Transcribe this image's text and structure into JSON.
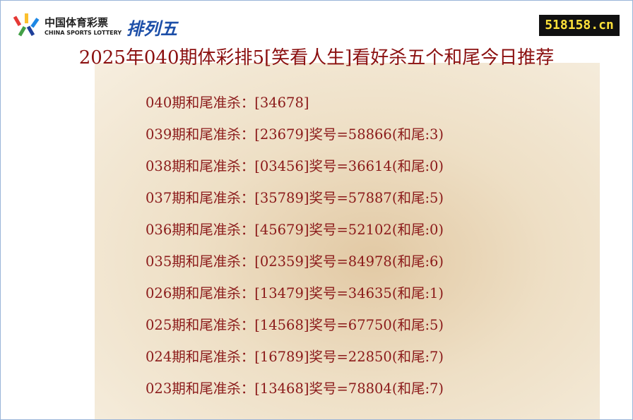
{
  "header": {
    "logo_cn": "中国体育彩票",
    "logo_en": "CHINA SPORTS LOTTERY",
    "game": "排列五",
    "site": "518158.cn"
  },
  "title": "2025年040期体彩排5[笑看人生]看好杀五个和尾今日推荐",
  "rows": [
    "040期和尾准杀：[34678]",
    "039期和尾准杀：[23679]奖号=58866(和尾:3)",
    "038期和尾准杀：[03456]奖号=36614(和尾:0)",
    "037期和尾准杀：[35789]奖号=57887(和尾:5)",
    "036期和尾准杀：[45679]奖号=52102(和尾:0)",
    "035期和尾准杀：[02359]奖号=84978(和尾:6)",
    "026期和尾准杀：[13479]奖号=34635(和尾:1)",
    "025期和尾准杀：[14568]奖号=67750(和尾:5)",
    "024期和尾准杀：[16789]奖号=22850(和尾:7)",
    "023期和尾准杀：[13468]奖号=78804(和尾:7)"
  ]
}
